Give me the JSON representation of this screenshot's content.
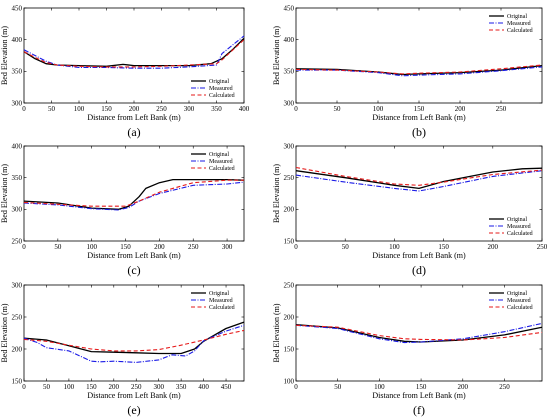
{
  "figure": {
    "legend_labels": [
      "Original",
      "Measured",
      "Calculated"
    ],
    "series_colors": {
      "Original": "#000000",
      "Measured": "#1a1ae6",
      "Calculated": "#e61a1a"
    }
  },
  "chart_data": [
    {
      "type": "line",
      "panel_label": "(a)",
      "xlabel": "Distance from Left Bank (m)",
      "ylabel": "Bed Elevation (m)",
      "xlim": [
        0,
        400
      ],
      "ylim": [
        300,
        450
      ],
      "xticks": [
        0,
        50,
        100,
        150,
        200,
        250,
        300,
        350,
        400
      ],
      "yticks": [
        300,
        350,
        400,
        450
      ],
      "legend_position": "bottom-right",
      "series": [
        {
          "name": "Original",
          "x": [
            0,
            20,
            40,
            60,
            100,
            150,
            180,
            200,
            250,
            300,
            340,
            360,
            380,
            400
          ],
          "y": [
            381,
            370,
            362,
            360,
            359,
            358,
            361,
            359,
            359,
            359,
            362,
            370,
            385,
            402
          ]
        },
        {
          "name": "Measured",
          "x": [
            0,
            20,
            40,
            60,
            100,
            150,
            200,
            250,
            300,
            350,
            360,
            380,
            400
          ],
          "y": [
            384,
            375,
            366,
            360,
            356,
            356,
            355,
            355,
            357,
            360,
            378,
            392,
            406
          ]
        },
        {
          "name": "Calculated",
          "x": [
            0,
            20,
            40,
            60,
            100,
            150,
            200,
            250,
            300,
            350,
            360,
            380,
            400
          ],
          "y": [
            381,
            372,
            364,
            360,
            358,
            357,
            357,
            358,
            360,
            362,
            368,
            384,
            400
          ]
        }
      ]
    },
    {
      "type": "line",
      "panel_label": "(b)",
      "xlabel": "Distance from Left Bank (m)",
      "ylabel": "Bed Elevation (m)",
      "xlim": [
        0,
        300
      ],
      "ylim": [
        300,
        450
      ],
      "xticks": [
        0,
        50,
        100,
        150,
        200,
        250
      ],
      "yticks": [
        300,
        350,
        400,
        450
      ],
      "legend_position": "top-right",
      "series": [
        {
          "name": "Original",
          "x": [
            0,
            50,
            100,
            130,
            150,
            200,
            250,
            300
          ],
          "y": [
            354,
            353,
            349,
            345,
            346,
            348,
            352,
            359
          ]
        },
        {
          "name": "Measured",
          "x": [
            0,
            50,
            100,
            130,
            150,
            200,
            250,
            300
          ],
          "y": [
            352,
            352,
            348,
            343,
            344,
            346,
            351,
            357
          ]
        },
        {
          "name": "Calculated",
          "x": [
            0,
            50,
            100,
            130,
            150,
            200,
            250,
            300
          ],
          "y": [
            353,
            352,
            349,
            346,
            347,
            349,
            354,
            360
          ]
        }
      ]
    },
    {
      "type": "line",
      "panel_label": "(c)",
      "xlabel": "Distance from Left Bank (m)",
      "ylabel": "Bed Elevation (m)",
      "xlim": [
        0,
        325
      ],
      "ylim": [
        250,
        400
      ],
      "xticks": [
        0,
        50,
        100,
        150,
        200,
        250,
        300
      ],
      "yticks": [
        250,
        300,
        350,
        400
      ],
      "legend_position": "top-right",
      "series": [
        {
          "name": "Original",
          "x": [
            0,
            50,
            100,
            140,
            155,
            170,
            180,
            200,
            220,
            250,
            300,
            325
          ],
          "y": [
            313,
            310,
            302,
            300,
            305,
            320,
            333,
            342,
            347,
            347,
            347,
            346
          ]
        },
        {
          "name": "Measured",
          "x": [
            0,
            50,
            100,
            140,
            155,
            170,
            200,
            250,
            300,
            325
          ],
          "y": [
            310,
            307,
            301,
            299,
            303,
            313,
            325,
            338,
            340,
            343
          ]
        },
        {
          "name": "Calculated",
          "x": [
            0,
            50,
            100,
            150,
            170,
            200,
            250,
            300,
            325
          ],
          "y": [
            311,
            308,
            305,
            305,
            313,
            327,
            342,
            346,
            346
          ]
        }
      ]
    },
    {
      "type": "line",
      "panel_label": "(d)",
      "xlabel": "Distance from Left Bank (m)",
      "ylabel": "Bed Elevation (m)",
      "xlim": [
        0,
        250
      ],
      "ylim": [
        150,
        300
      ],
      "xticks": [
        0,
        50,
        100,
        150,
        200,
        250
      ],
      "yticks": [
        150,
        200,
        250,
        300
      ],
      "legend_position": "bottom-right",
      "series": [
        {
          "name": "Original",
          "x": [
            0,
            50,
            100,
            125,
            150,
            200,
            230,
            250
          ],
          "y": [
            261,
            250,
            238,
            233,
            244,
            259,
            264,
            265
          ]
        },
        {
          "name": "Measured",
          "x": [
            0,
            50,
            100,
            125,
            150,
            200,
            250
          ],
          "y": [
            254,
            243,
            233,
            229,
            236,
            252,
            261
          ]
        },
        {
          "name": "Calculated",
          "x": [
            0,
            50,
            100,
            125,
            150,
            200,
            250
          ],
          "y": [
            266,
            252,
            240,
            238,
            243,
            255,
            262
          ]
        }
      ]
    },
    {
      "type": "line",
      "panel_label": "(e)",
      "xlabel": "Distance from Left Bank (m)",
      "ylabel": "Bed Elevation (m)",
      "xlim": [
        0,
        490
      ],
      "ylim": [
        150,
        300
      ],
      "xticks": [
        0,
        50,
        100,
        150,
        200,
        250,
        300,
        350,
        400,
        450
      ],
      "yticks": [
        150,
        200,
        250,
        300
      ],
      "legend_position": "top-right",
      "series": [
        {
          "name": "Original",
          "x": [
            0,
            50,
            100,
            150,
            200,
            250,
            300,
            350,
            380,
            400,
            450,
            490
          ],
          "y": [
            217,
            214,
            205,
            196,
            195,
            194,
            193,
            193,
            200,
            212,
            232,
            242
          ]
        },
        {
          "name": "Measured",
          "x": [
            0,
            30,
            50,
            100,
            150,
            170,
            200,
            250,
            300,
            330,
            360,
            380,
            400,
            450,
            490
          ],
          "y": [
            217,
            210,
            202,
            197,
            181,
            180,
            181,
            179,
            183,
            191,
            189,
            197,
            213,
            228,
            237
          ]
        },
        {
          "name": "Calculated",
          "x": [
            0,
            50,
            100,
            150,
            200,
            250,
            300,
            350,
            400,
            450,
            490
          ],
          "y": [
            215,
            212,
            206,
            200,
            197,
            197,
            199,
            206,
            214,
            223,
            229
          ]
        }
      ]
    },
    {
      "type": "line",
      "panel_label": "(f)",
      "xlabel": "Distance from Left Bank (m)",
      "ylabel": "Bed Elevation (m)",
      "xlim": [
        0,
        295
      ],
      "ylim": [
        100,
        250
      ],
      "xticks": [
        0,
        50,
        100,
        150,
        200,
        250
      ],
      "yticks": [
        100,
        150,
        200,
        250
      ],
      "legend_position": "top-right",
      "series": [
        {
          "name": "Original",
          "x": [
            0,
            50,
            100,
            130,
            150,
            200,
            250,
            295
          ],
          "y": [
            188,
            183,
            168,
            162,
            161,
            164,
            172,
            184
          ]
        },
        {
          "name": "Measured",
          "x": [
            0,
            50,
            100,
            130,
            150,
            200,
            250,
            295
          ],
          "y": [
            187,
            182,
            166,
            160,
            161,
            166,
            177,
            190
          ]
        },
        {
          "name": "Calculated",
          "x": [
            0,
            50,
            100,
            130,
            150,
            200,
            250,
            295
          ],
          "y": [
            187,
            184,
            171,
            166,
            165,
            164,
            168,
            176
          ]
        }
      ]
    }
  ]
}
